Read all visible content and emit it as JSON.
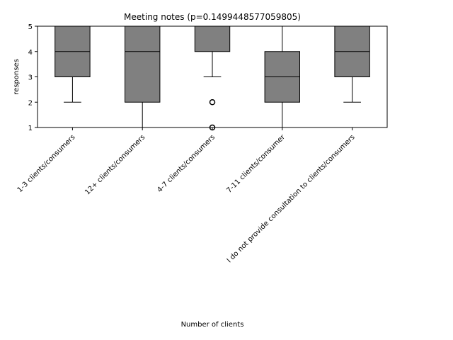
{
  "chart_data": {
    "type": "box",
    "title": "Meeting notes (p=0.1499448577059805)",
    "xlabel": "Number of clients",
    "ylabel": "responses",
    "ylim": [
      1,
      5
    ],
    "yticks": [
      1,
      2,
      3,
      4,
      5
    ],
    "grid": false,
    "box_color": "#808080",
    "categories": [
      "1-3 clients/consumers",
      "12+ clients/consumers",
      "4-7 clients/consumers",
      "7-11 clients/consumer",
      "I do not provide consultation to clients/consumers"
    ],
    "boxes": [
      {
        "whisker_low": 2,
        "q1": 3,
        "median": 4,
        "q3": 5,
        "whisker_high": 5,
        "outliers": []
      },
      {
        "whisker_low": 1,
        "q1": 2,
        "median": 4,
        "q3": 5,
        "whisker_high": 5,
        "outliers": []
      },
      {
        "whisker_low": 3,
        "q1": 4,
        "median": 5,
        "q3": 5,
        "whisker_high": 5,
        "outliers": [
          2,
          1
        ]
      },
      {
        "whisker_low": 1,
        "q1": 2,
        "median": 3,
        "q3": 4,
        "whisker_high": 5,
        "outliers": []
      },
      {
        "whisker_low": 2,
        "q1": 3,
        "median": 4,
        "q3": 5,
        "whisker_high": 5,
        "outliers": []
      }
    ]
  }
}
